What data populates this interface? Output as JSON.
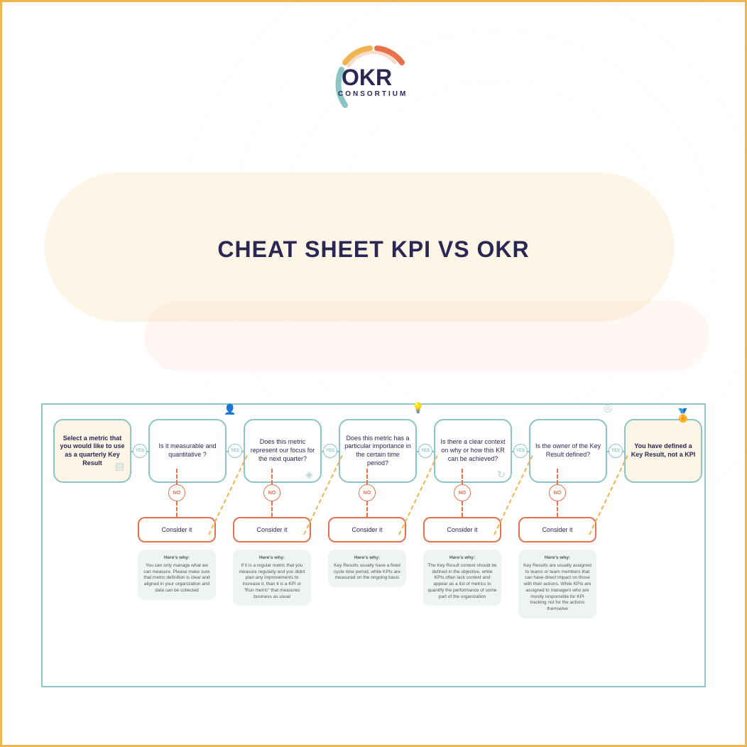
{
  "logo": {
    "main": "OKR",
    "sub": "CONSORTIUM",
    "arc_colors": [
      "#8bc5c5",
      "#f0b450",
      "#e8714b",
      "#f4c7a8"
    ]
  },
  "title": "CHEAT SHEET KPI VS OKR",
  "colors": {
    "border_outer": "#f0b450",
    "teal": "#8bc5c5",
    "orange": "#e8714b",
    "cream": "#fdf5e6",
    "dark": "#2a2754",
    "gray_box": "#eef4f4"
  },
  "flowchart": {
    "type": "flowchart",
    "start": "Select a metric that you would like to use as a quarterly Key Result",
    "end": "You have defined a Key Result, not a KPI",
    "yes_label": "YES",
    "no_label": "NO",
    "consider_label": "Consider it",
    "why_title": "Here's why:",
    "questions": [
      {
        "q": "Is it measurable and quantitative ?",
        "why": "You can only manage what we can measure. Please make sure that metric definition is clear and aligned in your organization and data can be collected"
      },
      {
        "q": "Does this metric represent our focus for the next quarter?",
        "why": "If it is a regular metric that you measure regularly and you didnt plan any improvements to increase it, than it is a KPI or \"Run metric\" that measures business as usual"
      },
      {
        "q": "Does this metric has a particular importance in the certain time period?",
        "why": "Key Results usually have a fixed cycle time period, while KPIs are measured on the ongoing basis"
      },
      {
        "q": "Is there a clear context on why or how this KR can be achieved?",
        "why": "The Key Result context should be defined in the objective, while KPIs often lack context and appear as a list of metrics to quantify the performance of some part of the organization"
      },
      {
        "q": "Is the owner of the Key Result defined?",
        "why": "Key Results are usually assigned to teams or team members that can have direct impact on those with their actions. While KPIs are assigned to managers who are mostly responsible for KPI tracking not for the actions themselve"
      }
    ]
  }
}
